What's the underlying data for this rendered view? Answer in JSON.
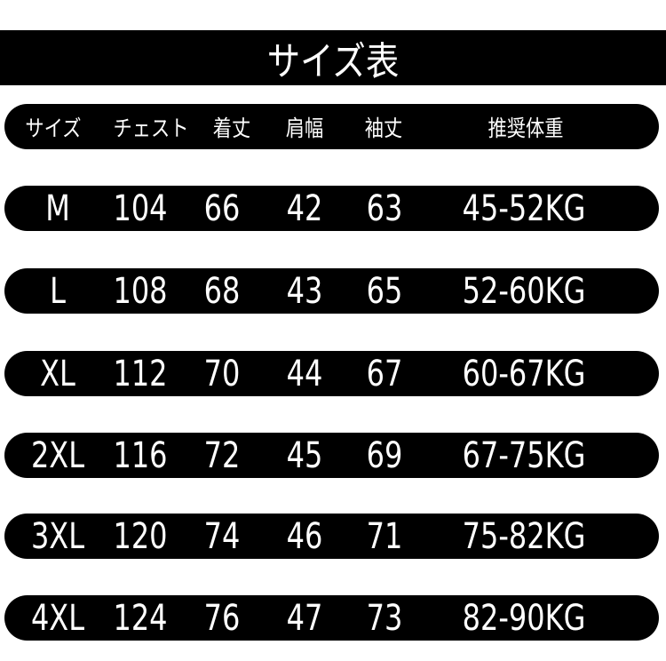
{
  "title": "サイズ表",
  "headers": [
    "サイズ",
    "チェスト",
    "着丈",
    "肩幅",
    "袖丈",
    "推奨体重"
  ],
  "rows": [
    [
      "M",
      "104",
      "66",
      "42",
      "63",
      "45-52KG"
    ],
    [
      "L",
      "108",
      "68",
      "43",
      "65",
      "52-60KG"
    ],
    [
      "XL",
      "112",
      "70",
      "44",
      "67",
      "60-67KG"
    ],
    [
      "2XL",
      "116",
      "72",
      "45",
      "69",
      "67-75KG"
    ],
    [
      "3XL",
      "120",
      "74",
      "46",
      "71",
      "75-82KG"
    ],
    [
      "4XL",
      "124",
      "76",
      "47",
      "73",
      "82-90KG"
    ]
  ]
}
